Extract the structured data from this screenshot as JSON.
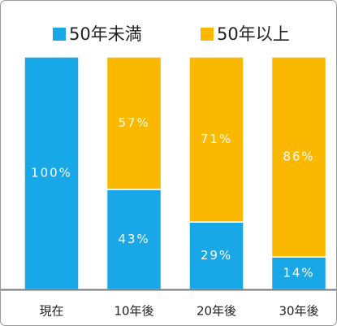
{
  "chart_data": {
    "type": "stacked_bar",
    "categories": [
      "現在",
      "10年後",
      "20年後",
      "30年後"
    ],
    "series": [
      {
        "name": "50年未満",
        "color": "#18a8e8",
        "values": [
          100,
          43,
          29,
          14
        ],
        "value_labels": [
          "100%",
          "43%",
          "29%",
          "14%"
        ]
      },
      {
        "name": "50年以上",
        "color": "#fbb800",
        "values": [
          0,
          57,
          71,
          86
        ],
        "value_labels": [
          null,
          "57%",
          "71%",
          "86%"
        ]
      }
    ],
    "legend": "top"
  }
}
